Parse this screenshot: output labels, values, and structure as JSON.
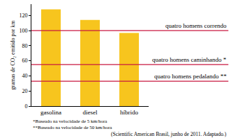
{
  "chart_data": {
    "type": "bar",
    "categories": [
      "gasolina",
      "diesel",
      "híbrido"
    ],
    "values": [
      128,
      114,
      97
    ],
    "color": "#f7c51e",
    "y_label": "gramas de CO₂ emitido por km",
    "ylim": [
      0,
      135
    ],
    "yticks": [
      0,
      20,
      40,
      60,
      80,
      100,
      120
    ],
    "grid": false,
    "annotations": [
      {
        "text": "quatro homens correndo",
        "y": 100
      },
      {
        "text": "quatro homens caminhando *",
        "y": 55
      },
      {
        "text": "quatro homens pedalando **",
        "y": 33
      }
    ],
    "notes": [
      "*Baseado na velocidade de 5 km/hora",
      "**Baseado na velocidade de 50 km/hora"
    ],
    "source": "(Scientific American Brasil, junho de 2011. Adaptado.)"
  }
}
